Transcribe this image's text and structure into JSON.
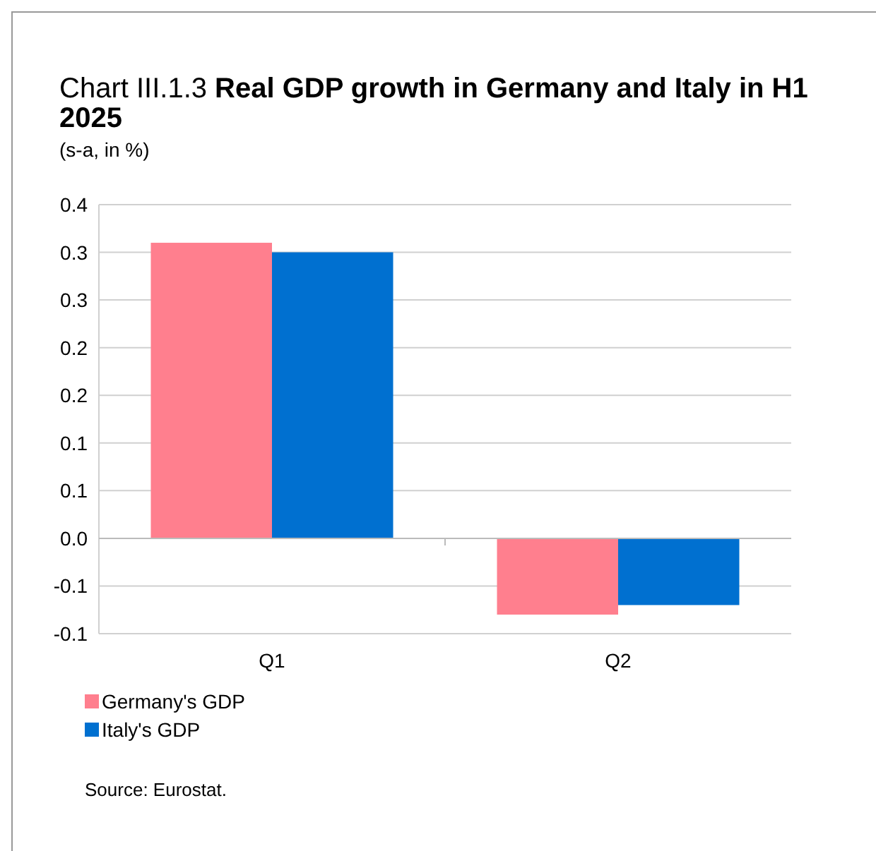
{
  "chart_data": {
    "type": "bar",
    "title": "Chart III.1.3 Real GDP growth in Germany and Italy in H1 2025",
    "subtitle": "(s-a, in %)",
    "categories": [
      "Q1",
      "Q2"
    ],
    "series": [
      {
        "name": "Germany's GDP",
        "color": "#ff7f8e",
        "values": [
          0.31,
          -0.08
        ]
      },
      {
        "name": "Italy's GDP",
        "color": "#0070d0",
        "values": [
          0.3,
          -0.07
        ]
      }
    ],
    "ylim": [
      -0.1,
      0.35
    ],
    "yticks": [
      {
        "value": -0.1,
        "label": "-0.1"
      },
      {
        "value": -0.05,
        "label": "-0.1"
      },
      {
        "value": 0,
        "label": "0.0"
      },
      {
        "value": 0.05,
        "label": "0.1"
      },
      {
        "value": 0.1,
        "label": "0.1"
      },
      {
        "value": 0.15,
        "label": "0.2"
      },
      {
        "value": 0.2,
        "label": "0.2"
      },
      {
        "value": 0.25,
        "label": "0.3"
      },
      {
        "value": 0.3,
        "label": "0.3"
      },
      {
        "value": 0.35,
        "label": "0.4"
      }
    ],
    "grid": "y",
    "legend": "bottom left",
    "annotations": [
      "Source: Eurostat."
    ]
  }
}
